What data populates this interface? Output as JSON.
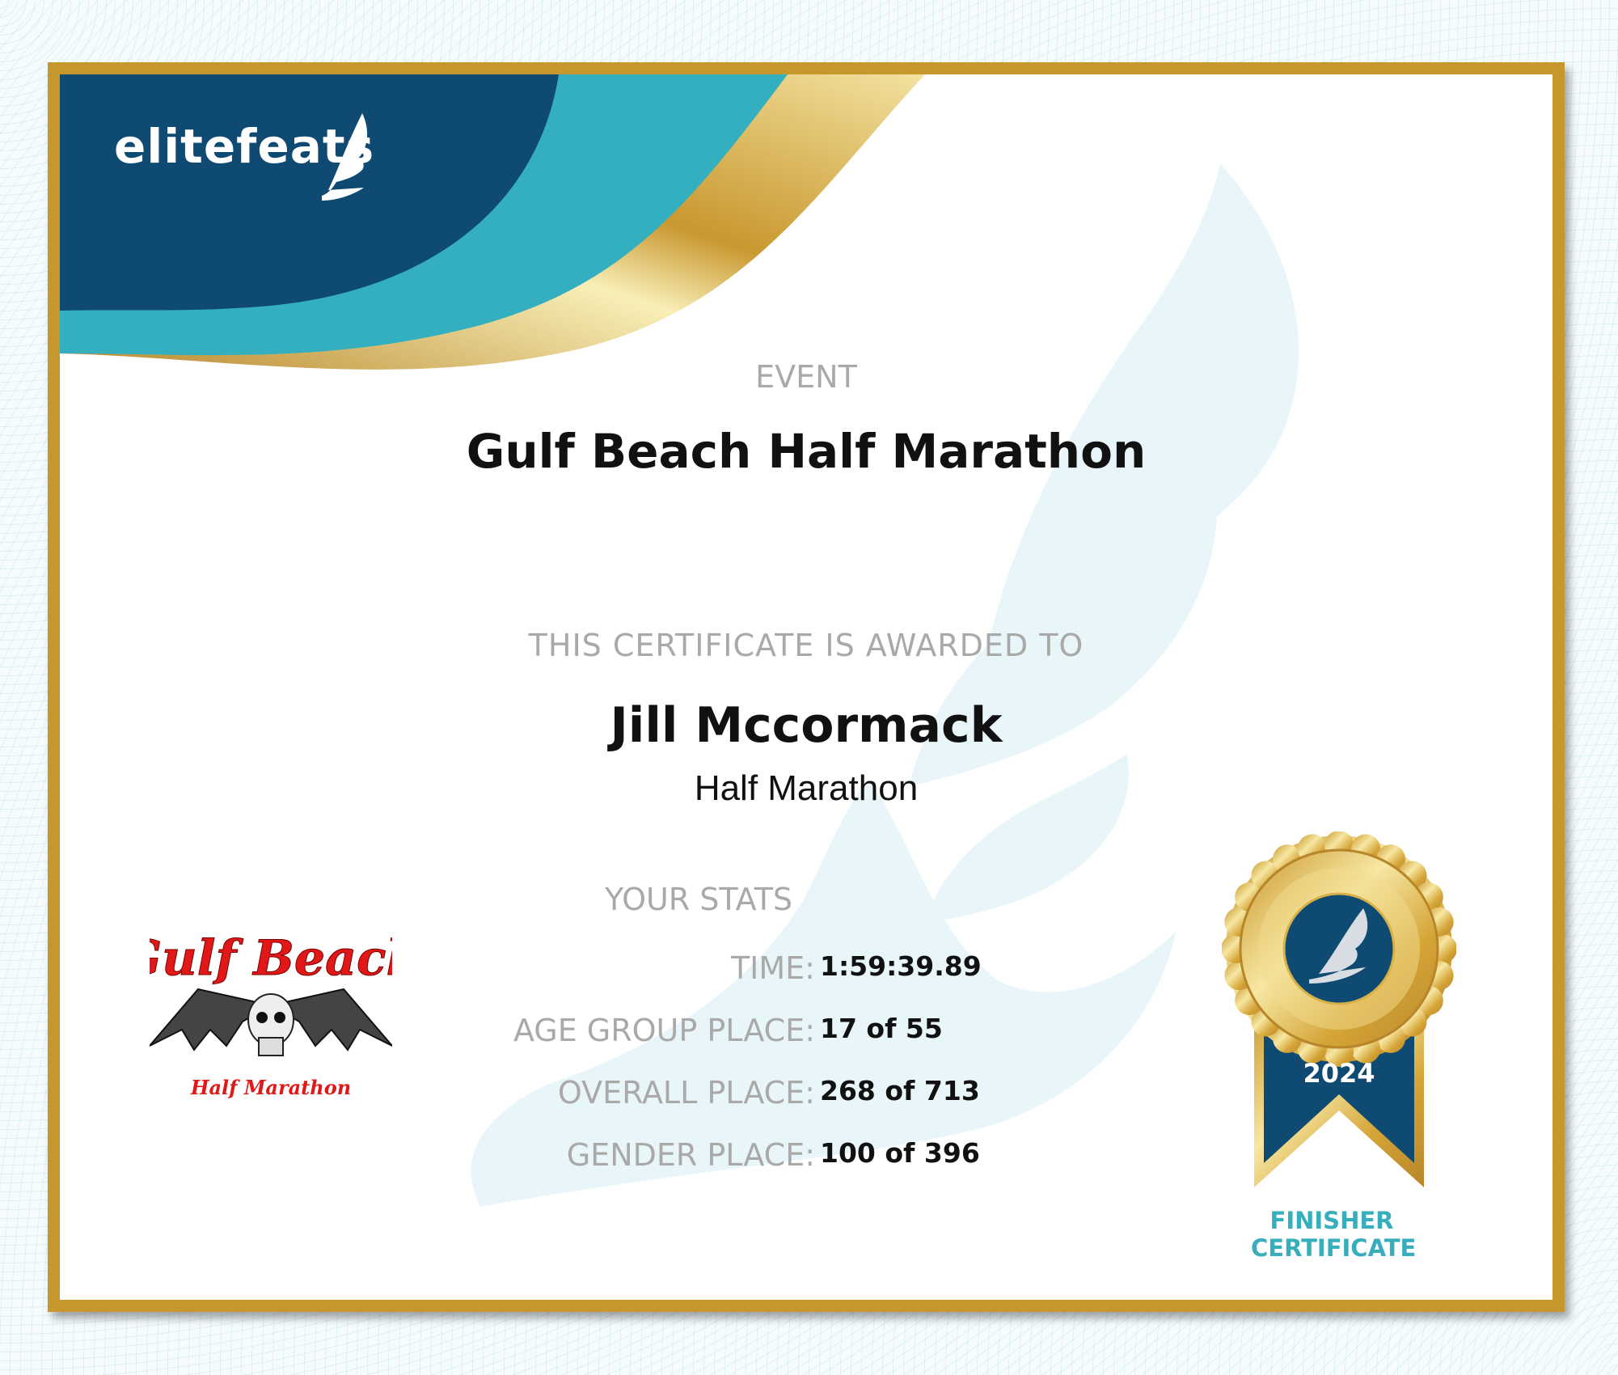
{
  "brand": {
    "name": "elitefeats"
  },
  "event": {
    "label": "EVENT",
    "title": "Gulf Beach Half Marathon"
  },
  "award": {
    "label": "THIS CERTIFICATE IS AWARDED TO",
    "name": "Jill Mccormack",
    "race": "Half Marathon"
  },
  "stats": {
    "title": "YOUR STATS",
    "rows": [
      {
        "label": "TIME:",
        "value": "1:59:39.89"
      },
      {
        "label": "AGE GROUP PLACE:",
        "value": "17 of 55"
      },
      {
        "label": "OVERALL PLACE:",
        "value": "268 of 713"
      },
      {
        "label": "GENDER PLACE:",
        "value": "100 of 396"
      }
    ]
  },
  "race_logo": {
    "line1": "Gulf Beach",
    "line2": "Half Marathon"
  },
  "medal": {
    "year": "2024",
    "caption_line1": "FINISHER",
    "caption_line2": "CERTIFICATE"
  },
  "colors": {
    "navy": "#0f4a72",
    "teal": "#33afbf",
    "gold": "#c5972c",
    "label_gray": "#a9a9a9",
    "race_logo_red": "#e01818"
  }
}
